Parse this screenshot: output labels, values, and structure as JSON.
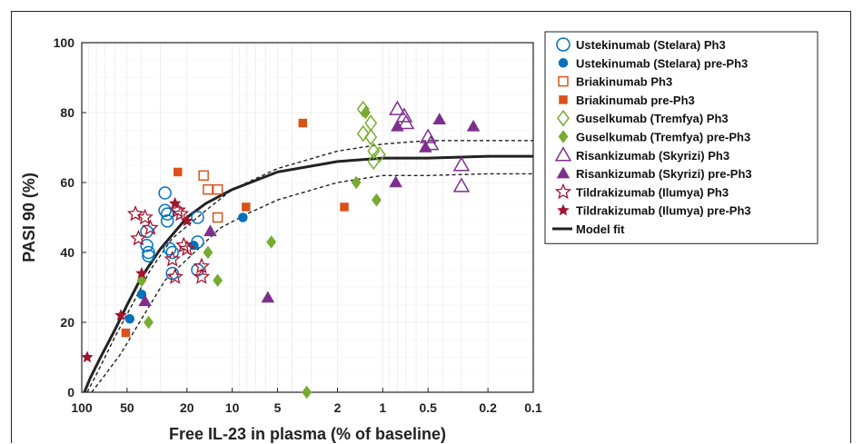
{
  "chart_data": {
    "type": "scatter",
    "title": "",
    "xlabel": "Free IL-23 in plasma (% of baseline)",
    "ylabel": "PASI 90 (%)",
    "x_scale": "log",
    "x_reversed": true,
    "xlim": [
      100,
      0.1
    ],
    "ylim": [
      0,
      100
    ],
    "x_ticks": [
      100,
      50,
      20,
      10,
      5,
      2,
      1,
      0.5,
      0.2,
      0.1
    ],
    "x_tick_labels": [
      "100",
      "50",
      "20",
      "10",
      "5",
      "2",
      "1",
      "0.5",
      "0.2",
      "0.1"
    ],
    "y_ticks": [
      0,
      20,
      40,
      60,
      80,
      100
    ],
    "y_tick_labels": [
      "0",
      "20",
      "40",
      "60",
      "80",
      "100"
    ],
    "grid": true,
    "legend_position": "right",
    "series": [
      {
        "name": "Ustekinumab (Stelara) Ph3",
        "marker": "circle",
        "filled": false,
        "color": "#0072BD",
        "points": [
          [
            37,
            46
          ],
          [
            37,
            42
          ],
          [
            36,
            40
          ],
          [
            36,
            39
          ],
          [
            28,
            57
          ],
          [
            28,
            52
          ],
          [
            27,
            51
          ],
          [
            27,
            49
          ],
          [
            26,
            41
          ],
          [
            25,
            40
          ],
          [
            25,
            34
          ],
          [
            17,
            50
          ],
          [
            17,
            43
          ],
          [
            17,
            35
          ]
        ]
      },
      {
        "name": "Ustekinumab (Stelara) pre-Ph3",
        "marker": "circle",
        "filled": true,
        "color": "#0072BD",
        "points": [
          [
            48,
            21
          ],
          [
            40,
            28
          ],
          [
            18,
            42
          ],
          [
            8.5,
            50
          ]
        ]
      },
      {
        "name": "Briakinumab Ph3",
        "marker": "square",
        "filled": false,
        "color": "#D95319",
        "points": [
          [
            15.5,
            62
          ],
          [
            14.5,
            58
          ],
          [
            12.5,
            58
          ],
          [
            12.5,
            50
          ]
        ]
      },
      {
        "name": "Briakinumab pre-Ph3",
        "marker": "square",
        "filled": true,
        "color": "#D95319",
        "points": [
          [
            51,
            17
          ],
          [
            23,
            63
          ],
          [
            8.1,
            53
          ],
          [
            3.4,
            77
          ],
          [
            1.8,
            53
          ]
        ]
      },
      {
        "name": "Guselkumab (Tremfya) Ph3",
        "marker": "diamond",
        "filled": false,
        "color": "#77AC30",
        "points": [
          [
            1.35,
            81
          ],
          [
            1.35,
            74
          ],
          [
            1.2,
            77
          ],
          [
            1.2,
            73
          ],
          [
            1.15,
            69
          ],
          [
            1.15,
            66
          ],
          [
            1.05,
            68
          ]
        ]
      },
      {
        "name": "Guselkumab (Tremfya) pre-Ph3",
        "marker": "diamond",
        "filled": true,
        "color": "#77AC30",
        "points": [
          [
            36,
            20
          ],
          [
            40,
            32
          ],
          [
            14.5,
            40
          ],
          [
            12.5,
            32
          ],
          [
            5.5,
            43
          ],
          [
            3.2,
            0
          ],
          [
            1.5,
            60
          ],
          [
            1.3,
            80
          ],
          [
            1.1,
            55
          ]
        ]
      },
      {
        "name": "Risankizumab (Skyrizi) Ph3",
        "marker": "triangle",
        "filled": false,
        "color": "#7E2F8E",
        "points": [
          [
            0.8,
            81
          ],
          [
            0.72,
            79
          ],
          [
            0.7,
            77
          ],
          [
            0.5,
            73
          ],
          [
            0.48,
            71
          ],
          [
            0.3,
            65
          ],
          [
            0.3,
            59
          ]
        ]
      },
      {
        "name": "Risankizumab (Skyrizi) pre-Ph3",
        "marker": "triangle",
        "filled": true,
        "color": "#7E2F8E",
        "points": [
          [
            38,
            26
          ],
          [
            14,
            46
          ],
          [
            5.8,
            27
          ],
          [
            0.82,
            60
          ],
          [
            0.8,
            76
          ],
          [
            0.52,
            70
          ],
          [
            0.42,
            78
          ],
          [
            0.25,
            76
          ]
        ]
      },
      {
        "name": "Tildrakizumab (Ilumya) Ph3",
        "marker": "star",
        "filled": false,
        "color": "#A2142F",
        "points": [
          [
            44,
            51
          ],
          [
            42,
            44
          ],
          [
            38,
            50
          ],
          [
            35,
            47
          ],
          [
            25,
            38
          ],
          [
            24,
            33
          ],
          [
            23,
            52
          ],
          [
            22,
            51
          ],
          [
            21,
            42
          ],
          [
            20,
            41
          ],
          [
            16,
            36
          ],
          [
            16,
            33
          ]
        ]
      },
      {
        "name": "Tildrakizumab (Ilumya) pre-Ph3",
        "marker": "star",
        "filled": true,
        "color": "#A2142F",
        "points": [
          [
            92,
            10
          ],
          [
            55,
            22
          ],
          [
            40,
            34
          ],
          [
            24,
            54
          ],
          [
            20,
            49
          ]
        ]
      }
    ],
    "model_fit": {
      "name": "Model fit",
      "color": "#222222",
      "curve": [
        [
          96,
          0
        ],
        [
          88,
          4
        ],
        [
          75,
          10
        ],
        [
          60,
          18
        ],
        [
          50,
          25
        ],
        [
          40,
          33
        ],
        [
          30,
          41
        ],
        [
          20,
          50
        ],
        [
          15,
          54
        ],
        [
          10,
          58
        ],
        [
          5,
          63
        ],
        [
          2,
          66
        ],
        [
          1,
          67
        ],
        [
          0.5,
          67
        ],
        [
          0.2,
          67.5
        ],
        [
          0.1,
          67.5
        ]
      ],
      "ci_upper": [
        [
          92,
          0
        ],
        [
          78,
          6
        ],
        [
          60,
          16
        ],
        [
          45,
          26
        ],
        [
          35,
          35
        ],
        [
          25,
          44
        ],
        [
          15,
          52
        ],
        [
          10,
          58
        ],
        [
          5,
          64
        ],
        [
          2,
          69
        ],
        [
          1,
          71
        ],
        [
          0.5,
          72
        ],
        [
          0.2,
          72
        ],
        [
          0.1,
          72
        ]
      ],
      "ci_lower": [
        [
          86,
          0
        ],
        [
          70,
          5
        ],
        [
          55,
          11
        ],
        [
          40,
          21
        ],
        [
          28,
          32
        ],
        [
          20,
          38
        ],
        [
          12,
          47
        ],
        [
          8,
          51
        ],
        [
          5,
          55
        ],
        [
          2,
          60
        ],
        [
          1,
          62
        ],
        [
          0.5,
          62
        ],
        [
          0.2,
          62.5
        ],
        [
          0.1,
          62.5
        ]
      ]
    }
  }
}
